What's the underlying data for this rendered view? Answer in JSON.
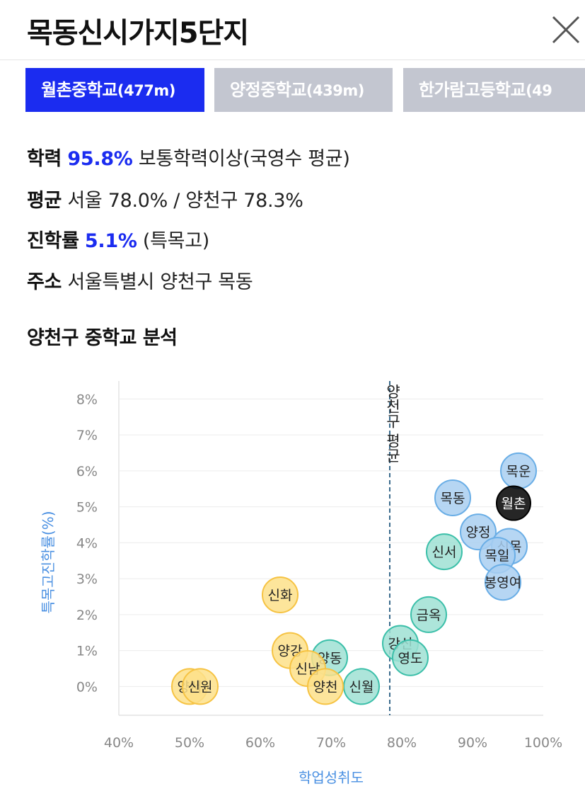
{
  "header": {
    "title": "목동신시가지5단지"
  },
  "tabs": [
    {
      "name": "월촌중학교",
      "distance": "(477m)",
      "active": true
    },
    {
      "name": "양정중학교",
      "distance": "(439m)",
      "active": false
    },
    {
      "name": "한가람고등학교",
      "distance": "(49",
      "active": false
    }
  ],
  "info": {
    "achievement_label": "학력",
    "achievement_value": "95.8%",
    "achievement_desc": "보통학력이상(국영수 평균)",
    "average_label": "평균",
    "average_value": "서울 78.0% / 양천구 78.3%",
    "advance_label": "진학률",
    "advance_value": "5.1%",
    "advance_desc": "(특목고)",
    "address_label": "주소",
    "address_value": "서울특별시 양천구 목동"
  },
  "section_title": "양천구 중학교 분석",
  "colors": {
    "accent": "#1b2cf0",
    "axis_title": "#4a90e2",
    "inactive_tab": "#c3c6d0"
  },
  "chart_data": {
    "type": "scatter",
    "xlabel": "학업성취도",
    "ylabel": "특목고진학률(%)",
    "xlim": [
      40,
      100
    ],
    "ylim": [
      -0.8,
      8.5
    ],
    "x_ticks": [
      "40%",
      "50%",
      "60%",
      "70%",
      "80%",
      "90%",
      "100%"
    ],
    "y_ticks": [
      "0%",
      "1%",
      "2%",
      "3%",
      "4%",
      "5%",
      "6%",
      "7%",
      "8%"
    ],
    "reference_line": {
      "x": 78.3,
      "label": "양천구 평균"
    },
    "grid": true,
    "points": [
      {
        "name": "목운",
        "x": 96.5,
        "y": 6.0,
        "group": "blue"
      },
      {
        "name": "목동",
        "x": 87.2,
        "y": 5.25,
        "group": "blue"
      },
      {
        "name": "월촌",
        "x": 95.8,
        "y": 5.1,
        "group": "selected"
      },
      {
        "name": "양정",
        "x": 90.8,
        "y": 4.3,
        "group": "blue"
      },
      {
        "name": "신목",
        "x": 95.2,
        "y": 3.9,
        "group": "blue"
      },
      {
        "name": "목일",
        "x": 93.5,
        "y": 3.65,
        "group": "blue"
      },
      {
        "name": "봉영여",
        "x": 94.3,
        "y": 2.9,
        "group": "blue"
      },
      {
        "name": "신서",
        "x": 86.0,
        "y": 3.75,
        "group": "teal"
      },
      {
        "name": "금옥",
        "x": 83.8,
        "y": 2.0,
        "group": "teal"
      },
      {
        "name": "강신",
        "x": 79.8,
        "y": 1.2,
        "group": "teal"
      },
      {
        "name": "영도",
        "x": 81.2,
        "y": 0.8,
        "group": "teal"
      },
      {
        "name": "양동",
        "x": 69.8,
        "y": 0.8,
        "group": "teal"
      },
      {
        "name": "신월",
        "x": 74.3,
        "y": 0.0,
        "group": "teal"
      },
      {
        "name": "신화",
        "x": 62.8,
        "y": 2.55,
        "group": "yellow"
      },
      {
        "name": "양강",
        "x": 64.2,
        "y": 1.0,
        "group": "yellow"
      },
      {
        "name": "신남",
        "x": 66.7,
        "y": 0.5,
        "group": "yellow"
      },
      {
        "name": "양천",
        "x": 69.2,
        "y": 0.0,
        "group": "yellow"
      },
      {
        "name": "양서",
        "x": 50.0,
        "y": 0.0,
        "group": "yellow"
      },
      {
        "name": "신원",
        "x": 51.5,
        "y": 0.0,
        "group": "yellow"
      }
    ]
  }
}
